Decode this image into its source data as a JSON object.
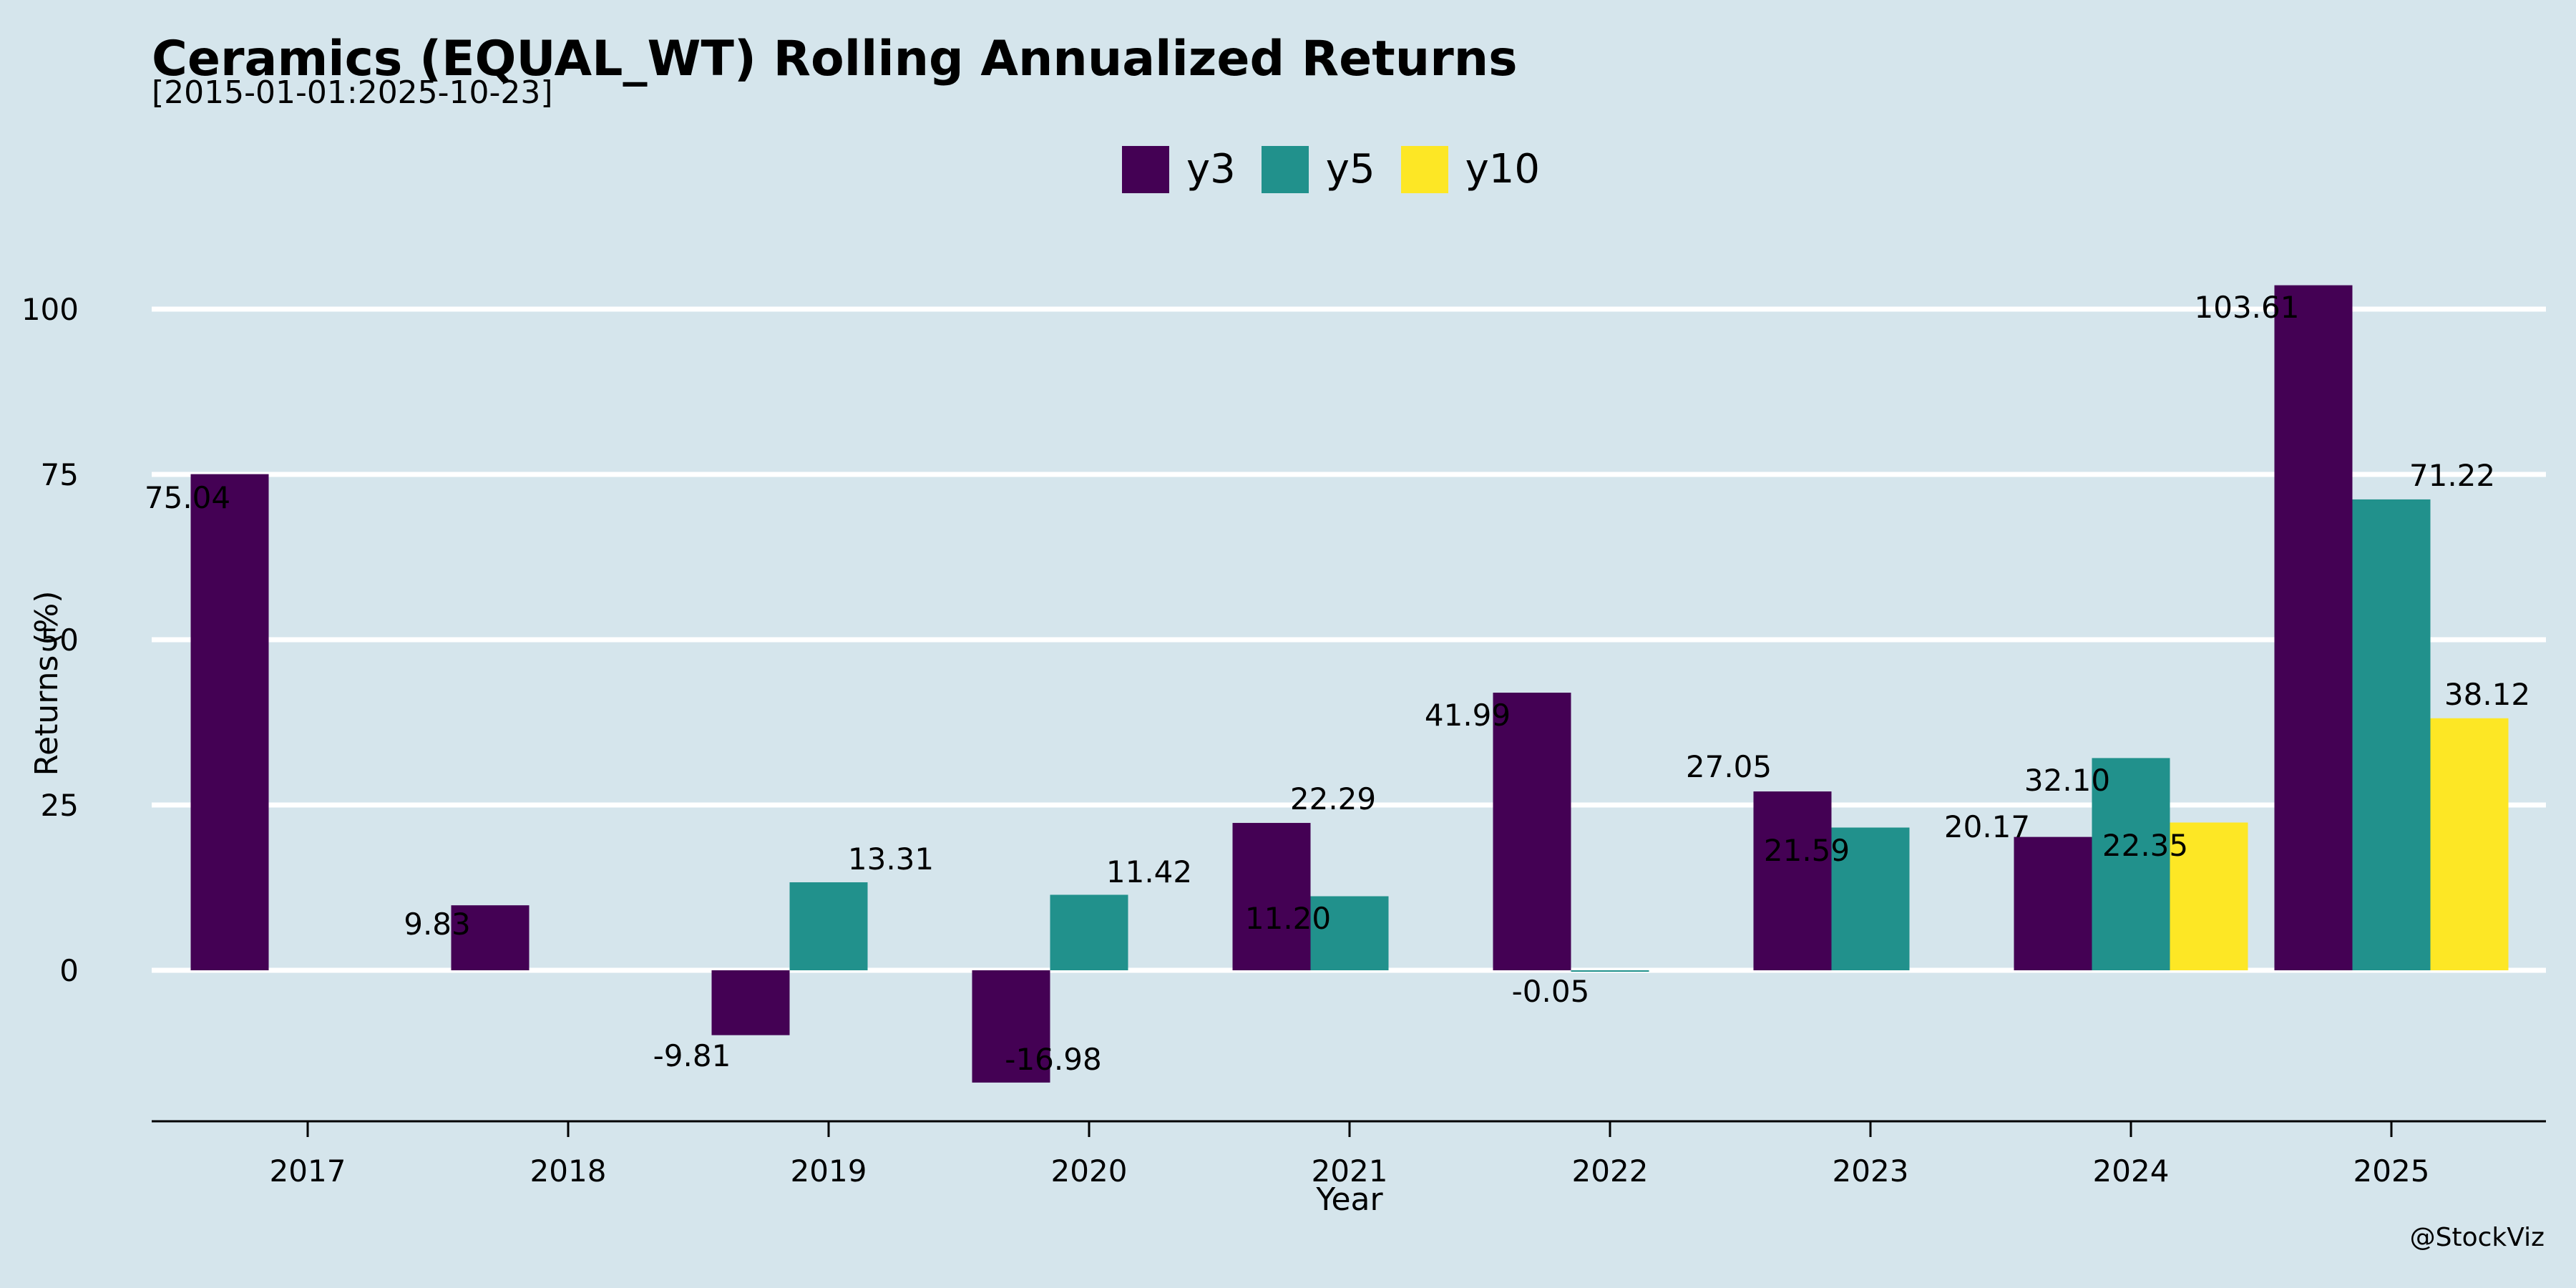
{
  "chart_data": {
    "type": "bar",
    "title": "Ceramics (EQUAL_WT) Rolling Annualized Returns",
    "subtitle": "[2015-01-01:2025-10-23]",
    "xlabel": "Year",
    "ylabel": "Returns (%)",
    "categories": [
      "2017",
      "2018",
      "2019",
      "2020",
      "2021",
      "2022",
      "2023",
      "2024",
      "2025"
    ],
    "yticks": [
      0,
      25,
      50,
      75,
      100
    ],
    "ylim": [
      -23,
      111
    ],
    "grid": "horizontal",
    "legend_position": "top-center",
    "series": [
      {
        "name": "y3",
        "color": "#440154",
        "values": [
          75.04,
          9.83,
          -9.81,
          -16.98,
          22.29,
          41.99,
          27.05,
          20.17,
          103.61
        ],
        "labels": [
          "75.04",
          "9.83",
          "-9.81",
          "-16.98",
          "22.29",
          "41.99",
          "27.05",
          "20.17",
          "103.61"
        ]
      },
      {
        "name": "y5",
        "color": "#21918c",
        "values": [
          null,
          null,
          13.31,
          11.42,
          11.2,
          -0.05,
          21.59,
          32.1,
          71.22
        ],
        "labels": [
          null,
          null,
          "13.31",
          "11.42",
          "11.20",
          "-0.05",
          "21.59",
          "32.10",
          "71.22"
        ]
      },
      {
        "name": "y10",
        "color": "#fde725",
        "values": [
          null,
          null,
          null,
          null,
          null,
          null,
          null,
          22.35,
          38.12
        ],
        "labels": [
          null,
          null,
          null,
          null,
          null,
          null,
          null,
          "22.35",
          "38.12"
        ]
      }
    ]
  },
  "watermark": "@StockViz"
}
